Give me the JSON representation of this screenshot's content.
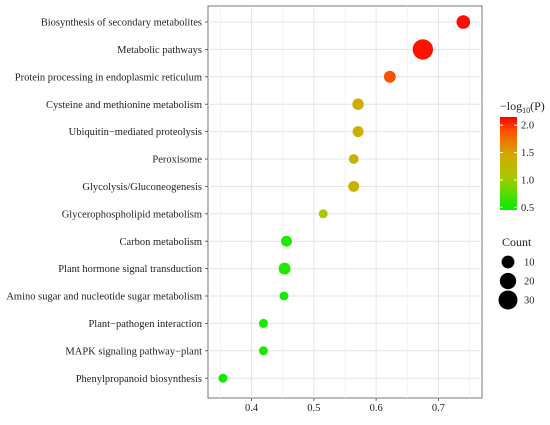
{
  "chart_data": {
    "type": "scatter",
    "categories": [
      "Biosynthesis of secondary metabolites",
      "Metabolic pathways",
      "Protein processing in endoplasmic reticulum",
      "Cysteine and methionine metabolism",
      "Ubiquitin−mediated proteolysis",
      "Peroxisome",
      "Glycolysis/Gluconeogenesis",
      "Glycerophospholipid metabolism",
      "Carbon metabolism",
      "Plant hormone signal transduction",
      "Amino sugar and nucleotide sugar metabolism",
      "Plant−pathogen interaction",
      "MAPK signaling pathway−plant",
      "Phenylpropanoid biosynthesis"
    ],
    "x": [
      0.74,
      0.675,
      0.622,
      0.571,
      0.571,
      0.564,
      0.564,
      0.515,
      0.456,
      0.453,
      0.452,
      0.419,
      0.419,
      0.354
    ],
    "neg_log10_p": [
      2.1,
      2.08,
      1.85,
      1.35,
      1.32,
      1.28,
      1.3,
      1.0,
      0.55,
      0.56,
      0.52,
      0.52,
      0.52,
      0.5
    ],
    "count": [
      12,
      36,
      8,
      7,
      6,
      4,
      6,
      3,
      6,
      8,
      3,
      3,
      3,
      3
    ],
    "xlim": [
      0.33,
      0.77
    ],
    "xticks": [
      "0.4",
      "0.5",
      "0.6",
      "0.7"
    ],
    "xtick_values": [
      0.4,
      0.5,
      0.6,
      0.7
    ],
    "xlabel": "",
    "ylabel": "",
    "grid": true,
    "color_legend": {
      "title_prefix": "−log",
      "title_sub": "10",
      "title_suffix": "(P)",
      "ticks": [
        "2.0",
        "1.5",
        "1.0",
        "0.5"
      ],
      "tick_values": [
        2.0,
        1.5,
        1.0,
        0.5
      ],
      "range": [
        0.45,
        2.15
      ],
      "colors": [
        "#ff0000",
        "#ff8000",
        "#c8b400",
        "#00f000"
      ]
    },
    "size_legend": {
      "title": "Count",
      "labels": [
        "10",
        "20",
        "30"
      ],
      "values": [
        10,
        20,
        30
      ]
    },
    "point_color_scale": "red-orange-yellow-green"
  }
}
